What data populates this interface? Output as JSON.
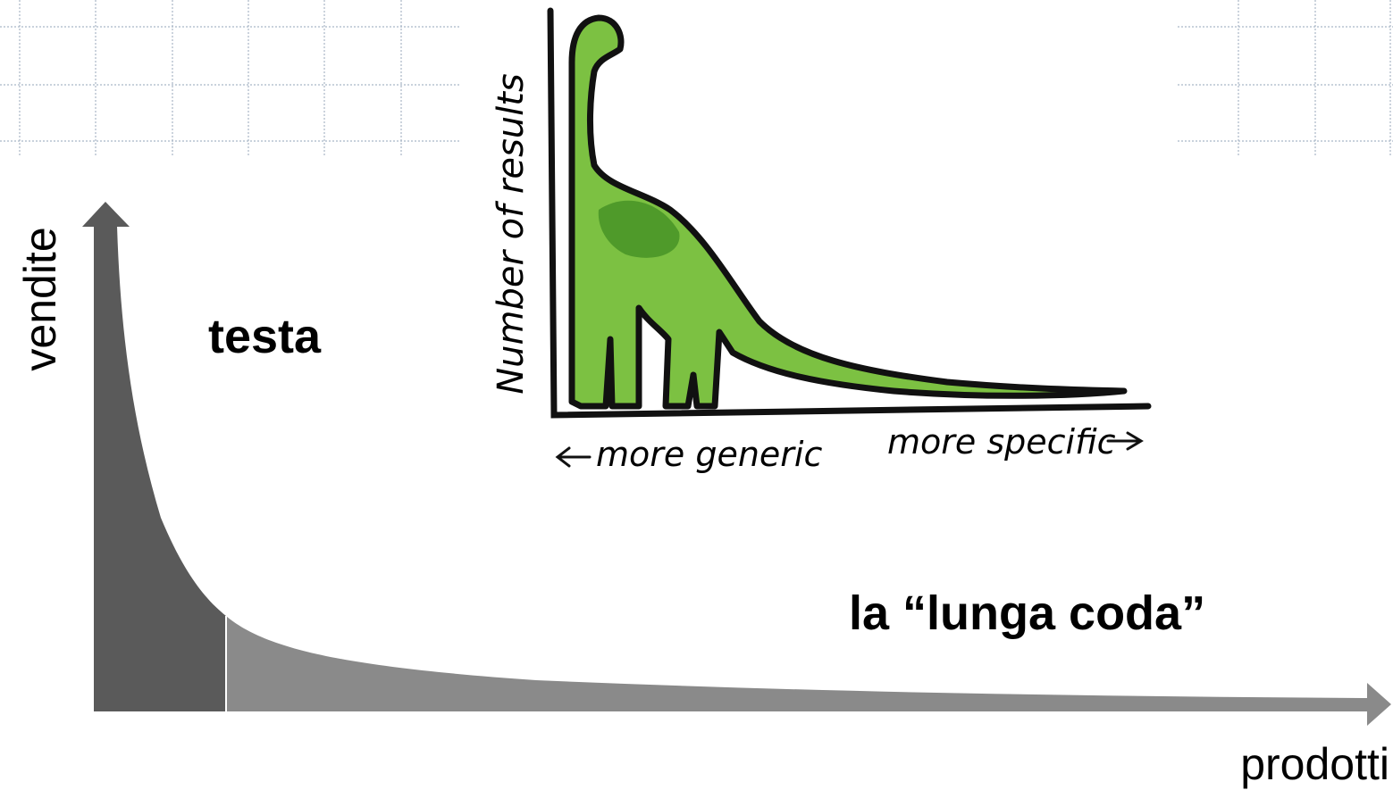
{
  "labels": {
    "y_axis": "vendite",
    "x_axis": "prodotti",
    "head": "testa",
    "tail": "la “lunga coda”"
  },
  "inset": {
    "y_axis": "Number of results",
    "x_left": "more generic",
    "x_right": "more specific"
  }
}
